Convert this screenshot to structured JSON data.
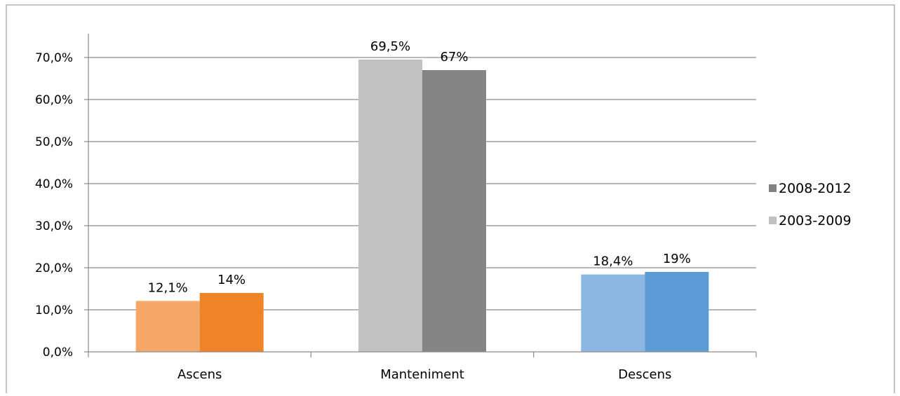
{
  "chart_data": {
    "type": "bar",
    "title": "",
    "xlabel": "",
    "ylabel": "",
    "categories": [
      "Ascens",
      "Manteniment",
      "Descens"
    ],
    "ylim": [
      0,
      0.7
    ],
    "y_ticks": [
      "0,0%",
      "10,0%",
      "20,0%",
      "30,0%",
      "40,0%",
      "50,0%",
      "60,0%",
      "70,0%"
    ],
    "grid": true,
    "legend_position": "right",
    "legend": [
      {
        "label": "2008-2012",
        "color": "#808285"
      },
      {
        "label": "2003-2009",
        "color": "#bfc0c1"
      }
    ],
    "series": [
      {
        "name": "2003-2009",
        "values": [
          0.121,
          0.695,
          0.184
        ],
        "labels": [
          "12,1%",
          "69,5%",
          "18,4%"
        ],
        "colors": [
          "#f5a767",
          "#c0c1c2",
          "#8db7e3"
        ]
      },
      {
        "name": "2008-2012",
        "values": [
          0.14,
          0.67,
          0.19
        ],
        "labels": [
          "14%",
          "67%",
          "19%"
        ],
        "colors": [
          "#ed8426",
          "#838586",
          "#5b9bd5"
        ]
      }
    ]
  }
}
